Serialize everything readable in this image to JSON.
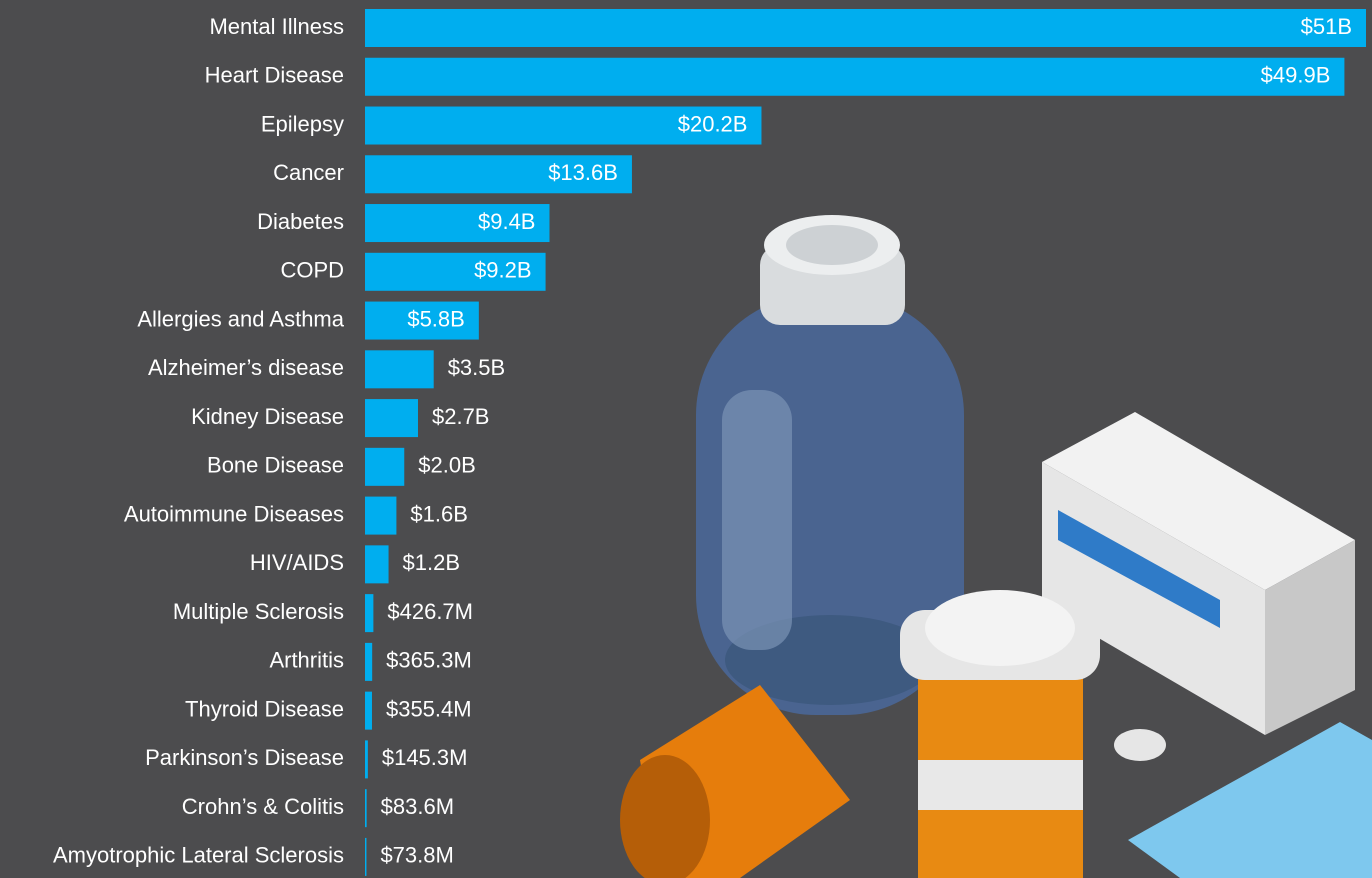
{
  "chart_data": {
    "type": "barh",
    "categories": [
      "Mental Illness",
      "Heart Disease",
      "Epilepsy",
      "Cancer",
      "Diabetes",
      "COPD",
      "Allergies and Asthma",
      "Alzheimer’s disease",
      "Kidney Disease",
      "Bone Disease",
      "Autoimmune Diseases",
      "HIV/AIDS",
      "Multiple Sclerosis",
      "Arthritis",
      "Thyroid Disease",
      "Parkinson’s Disease",
      "Crohn’s & Colitis",
      "Amyotrophic Lateral Sclerosis"
    ],
    "values": [
      51,
      49.9,
      20.2,
      13.6,
      9.4,
      9.2,
      5.8,
      3.5,
      2.7,
      2.0,
      1.6,
      1.2,
      0.4267,
      0.3653,
      0.3554,
      0.1453,
      0.0836,
      0.0738
    ],
    "value_labels": [
      "$51B",
      "$49.9B",
      "$20.2B",
      "$13.6B",
      "$9.4B",
      "$9.2B",
      "$5.8B",
      "$3.5B",
      "$2.7B",
      "$2.0B",
      "$1.6B",
      "$1.2B",
      "$426.7M",
      "$365.3M",
      "$355.4M",
      "$145.3M",
      "$83.6M",
      "$73.8M"
    ],
    "color": "#00aeef",
    "xlim": [
      0,
      51
    ]
  }
}
